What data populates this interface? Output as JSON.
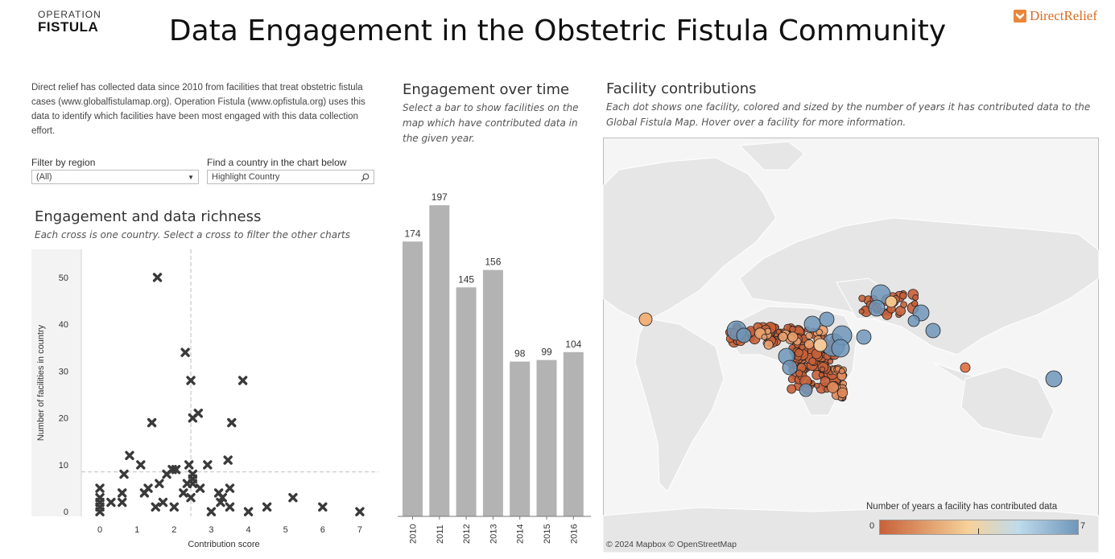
{
  "header": {
    "logo_left_line1": "OPERATION",
    "logo_left_line2": "FISTULA",
    "title": "Data Engagement in the Obstetric Fistula Community",
    "logo_right": "DirectRelief"
  },
  "intro": {
    "text": "Direct relief has collected data since 2010 from facilities that treat obstetric fistula cases (www.globalfistulamap.org). Operation Fistula (www.opfistula.org) uses this data to identify which facilities have been most engaged with this data collection effort."
  },
  "filters": {
    "region_label": "Filter by region",
    "region_value": "(All)",
    "country_label": "Find a country in the chart below",
    "country_placeholder": "Highlight Country"
  },
  "scatter_panel": {
    "title": "Engagement and data richness",
    "subtitle": "Each cross is one country. Select a cross to filter the other charts"
  },
  "bar_panel": {
    "title": "Engagement over time",
    "subtitle": "Select a bar to show facilities on the map which have contributed data in the given year."
  },
  "map_panel": {
    "title": "Facility contributions",
    "subtitle": "Each dot shows one facility, colored  and sized by the number of years it has contributed data to the Global Fistula Map. Hover over a facility for more information.",
    "attribution": "© 2024 Mapbox  © OpenStreetMap",
    "legend_title": "Number of years a facility has contributed data",
    "legend_min": "0",
    "legend_max": "7",
    "colors": {
      "low": "#c8613a",
      "mid": "#f6d29a",
      "high": "#6f96ba",
      "land": "#e6e6e6",
      "water": "#f5f5f5"
    }
  },
  "colors": {
    "bar": "#b3b3b3",
    "marker": "#3a3a3a",
    "reference": "#c8c8c8"
  },
  "chart_data": [
    {
      "type": "scatter",
      "title": "Engagement and data richness",
      "xlabel": "Contribution score",
      "ylabel": "Number of facilities in country",
      "xlim": [
        -0.5,
        7.5
      ],
      "ylim": [
        -1,
        56
      ],
      "x_ticks": [
        0,
        1,
        2,
        3,
        4,
        5,
        6,
        7
      ],
      "y_ticks": [
        0,
        10,
        20,
        30,
        40,
        50
      ],
      "reference_lines": {
        "x": 2.45,
        "y": 8.5
      },
      "points": [
        [
          0,
          0
        ],
        [
          0,
          1
        ],
        [
          0,
          2
        ],
        [
          0,
          3
        ],
        [
          0,
          5
        ],
        [
          0.3,
          2
        ],
        [
          0.6,
          2
        ],
        [
          0.6,
          4
        ],
        [
          0.65,
          8
        ],
        [
          0.8,
          12
        ],
        [
          1.1,
          10
        ],
        [
          1.2,
          4
        ],
        [
          1.3,
          5
        ],
        [
          1.4,
          19
        ],
        [
          1.5,
          1
        ],
        [
          1.55,
          50
        ],
        [
          1.6,
          6
        ],
        [
          1.7,
          2
        ],
        [
          1.8,
          8
        ],
        [
          1.95,
          9
        ],
        [
          2.0,
          1
        ],
        [
          2.05,
          9
        ],
        [
          2.25,
          4
        ],
        [
          2.3,
          34
        ],
        [
          2.35,
          6
        ],
        [
          2.4,
          10
        ],
        [
          2.45,
          3
        ],
        [
          2.5,
          8
        ],
        [
          2.5,
          7
        ],
        [
          2.5,
          6
        ],
        [
          2.45,
          28
        ],
        [
          2.5,
          20
        ],
        [
          2.65,
          21
        ],
        [
          2.7,
          5
        ],
        [
          2.9,
          10
        ],
        [
          3.0,
          0
        ],
        [
          3.2,
          4
        ],
        [
          3.25,
          2
        ],
        [
          3.3,
          3
        ],
        [
          3.45,
          11
        ],
        [
          3.5,
          5
        ],
        [
          3.5,
          1
        ],
        [
          3.55,
          19
        ],
        [
          3.85,
          28
        ],
        [
          4.0,
          0
        ],
        [
          4.5,
          1
        ],
        [
          5.2,
          3
        ],
        [
          6.0,
          1
        ],
        [
          7.0,
          0
        ]
      ]
    },
    {
      "type": "bar",
      "title": "Engagement over time",
      "categories": [
        "2010",
        "2011",
        "2012",
        "2013",
        "2014",
        "2015",
        "2016"
      ],
      "values": [
        174,
        197,
        145,
        156,
        98,
        99,
        104
      ],
      "ylim": [
        0,
        220
      ]
    }
  ]
}
